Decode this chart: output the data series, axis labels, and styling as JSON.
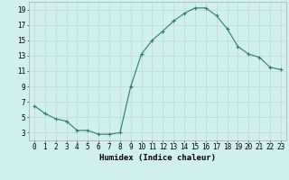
{
  "x": [
    0,
    1,
    2,
    3,
    4,
    5,
    6,
    7,
    8,
    9,
    10,
    11,
    12,
    13,
    14,
    15,
    16,
    17,
    18,
    19,
    20,
    21,
    22,
    23
  ],
  "y": [
    6.5,
    5.5,
    4.8,
    4.5,
    3.3,
    3.3,
    2.8,
    2.8,
    3.0,
    9.0,
    13.2,
    15.0,
    16.2,
    17.5,
    18.5,
    19.2,
    19.2,
    18.2,
    16.5,
    14.2,
    13.2,
    12.8,
    11.5,
    11.2
  ],
  "line_color": "#2e7d6e",
  "marker": "+",
  "marker_size": 3.5,
  "bg_color": "#cff0ec",
  "grid_color": "#c0d8d4",
  "xlabel": "Humidex (Indice chaleur)",
  "xlabel_fontsize": 6.5,
  "tick_fontsize": 5.5,
  "ylim": [
    2,
    20
  ],
  "xlim": [
    -0.5,
    23.5
  ],
  "yticks": [
    3,
    5,
    7,
    9,
    11,
    13,
    15,
    17,
    19
  ],
  "xticks": [
    0,
    1,
    2,
    3,
    4,
    5,
    6,
    7,
    8,
    9,
    10,
    11,
    12,
    13,
    14,
    15,
    16,
    17,
    18,
    19,
    20,
    21,
    22,
    23
  ],
  "xtick_labels": [
    "0",
    "1",
    "2",
    "3",
    "4",
    "5",
    "6",
    "7",
    "8",
    "9",
    "10",
    "11",
    "12",
    "13",
    "14",
    "15",
    "16",
    "17",
    "18",
    "19",
    "20",
    "21",
    "22",
    "23"
  ],
  "line_width": 0.8,
  "spine_color": "#aaaaaa"
}
